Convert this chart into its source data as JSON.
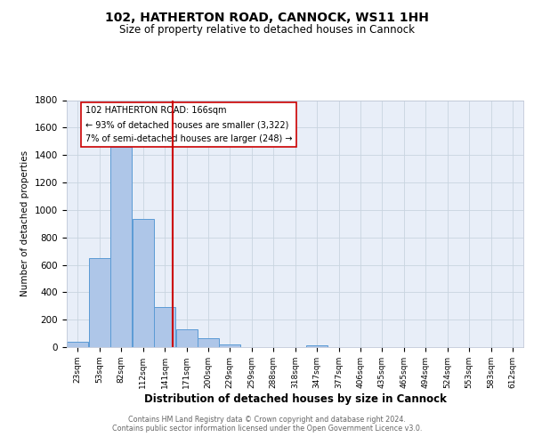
{
  "title": "102, HATHERTON ROAD, CANNOCK, WS11 1HH",
  "subtitle": "Size of property relative to detached houses in Cannock",
  "xlabel": "Distribution of detached houses by size in Cannock",
  "ylabel": "Number of detached properties",
  "bin_labels": [
    "23sqm",
    "53sqm",
    "82sqm",
    "112sqm",
    "141sqm",
    "171sqm",
    "200sqm",
    "229sqm",
    "259sqm",
    "288sqm",
    "318sqm",
    "347sqm",
    "377sqm",
    "406sqm",
    "435sqm",
    "465sqm",
    "494sqm",
    "524sqm",
    "553sqm",
    "583sqm",
    "612sqm"
  ],
  "bin_edges": [
    23,
    53,
    82,
    112,
    141,
    171,
    200,
    229,
    259,
    288,
    318,
    347,
    377,
    406,
    435,
    465,
    494,
    524,
    553,
    583,
    612
  ],
  "counts": [
    40,
    650,
    1460,
    935,
    290,
    130,
    62,
    22,
    0,
    0,
    0,
    14,
    0,
    0,
    0,
    0,
    0,
    0,
    0,
    0,
    0
  ],
  "bar_color": "#aec6e8",
  "bar_edge_color": "#5b9bd5",
  "property_value": 166,
  "vline_color": "#cc0000",
  "annotation_box_color": "#ffffff",
  "annotation_box_edge": "#cc0000",
  "annotation_line1": "102 HATHERTON ROAD: 166sqm",
  "annotation_line2": "← 93% of detached houses are smaller (3,322)",
  "annotation_line3": "7% of semi-detached houses are larger (248) →",
  "ylim": [
    0,
    1800
  ],
  "plot_bg_color": "#e8eef8",
  "footer_line1": "Contains HM Land Registry data © Crown copyright and database right 2024.",
  "footer_line2": "Contains public sector information licensed under the Open Government Licence v3.0."
}
